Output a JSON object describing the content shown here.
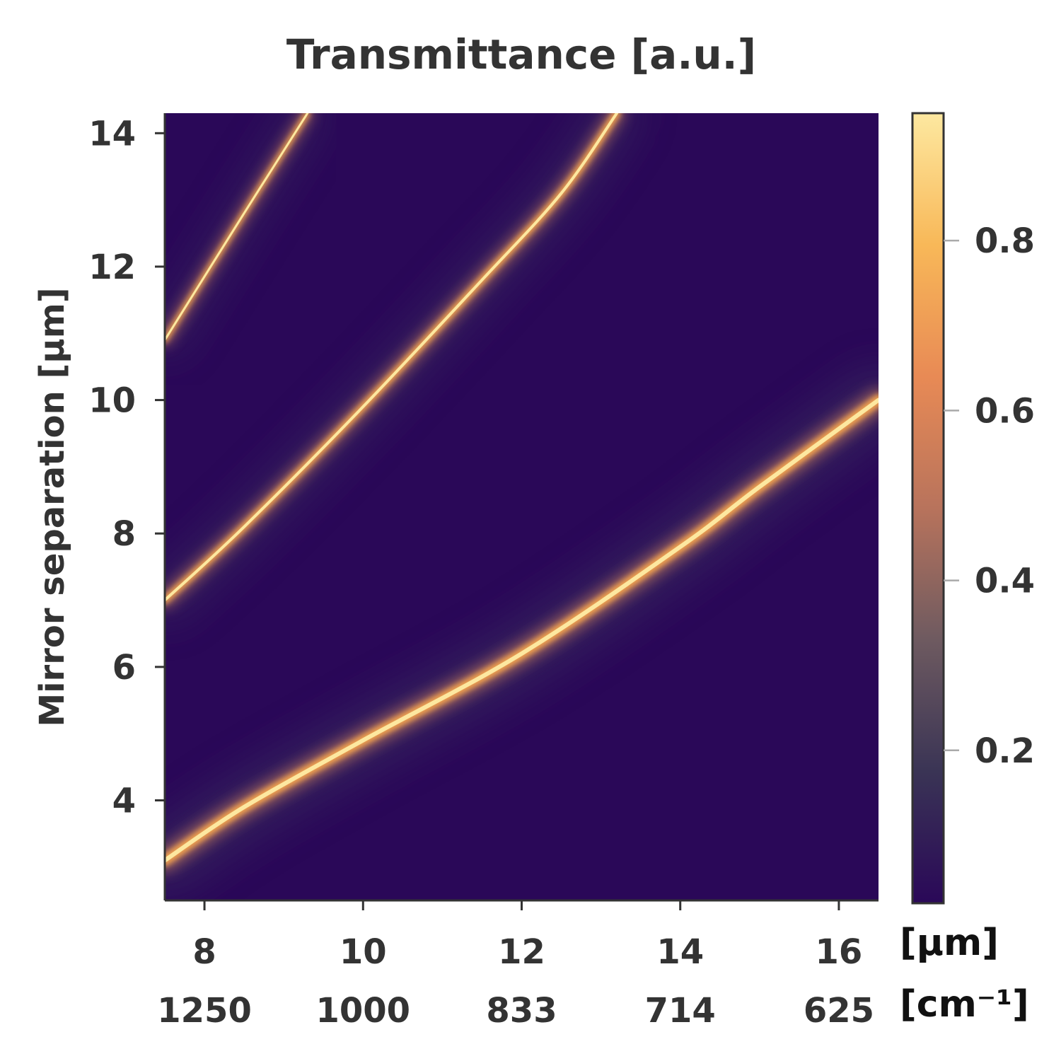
{
  "chart_data": {
    "type": "heatmap",
    "title": "Transmittance [a.u.]",
    "xlabel": "",
    "ylabel": "Mirror separation [µm]",
    "x_unit_primary": "[µm]",
    "x_unit_secondary": "[cm⁻¹]",
    "xlim": [
      7.5,
      16.5
    ],
    "ylim": [
      2.5,
      14.3
    ],
    "x_ticks": [
      8,
      10,
      12,
      14,
      16
    ],
    "x_tick_labels": [
      "8",
      "10",
      "12",
      "14",
      "16"
    ],
    "x_secondary_tick_labels": [
      "1250",
      "1000",
      "833",
      "714",
      "625"
    ],
    "y_ticks": [
      4,
      6,
      8,
      10,
      12,
      14
    ],
    "y_tick_labels": [
      "4",
      "6",
      "8",
      "10",
      "12",
      "14"
    ],
    "colorbar": {
      "range": [
        0.02,
        0.95
      ],
      "ticks": [
        0.2,
        0.4,
        0.6,
        0.8
      ],
      "tick_labels": [
        "0.2",
        "0.4",
        "0.6",
        "0.8"
      ],
      "colormap": "dark-purple-to-cream",
      "stops": [
        "#2a0858",
        "#3a3455",
        "#6e5a60",
        "#b8735c",
        "#e88a55",
        "#f8b858",
        "#fde8a0"
      ]
    },
    "background_color": "#2a0858",
    "grid": false,
    "series": [
      {
        "x": [
          7.5,
          8.5,
          10.0,
          12.0,
          14.0,
          15.0,
          16.5
        ],
        "y": [
          3.1,
          3.9,
          4.9,
          6.2,
          7.8,
          8.7,
          10.0
        ]
      },
      {
        "x": [
          7.5,
          8.5,
          10.0,
          11.5,
          12.5,
          13.2
        ],
        "y": [
          7.0,
          8.1,
          9.9,
          11.8,
          13.1,
          14.3
        ]
      },
      {
        "x": [
          7.5,
          8.5,
          9.3
        ],
        "y": [
          10.9,
          12.8,
          14.3
        ]
      }
    ]
  }
}
